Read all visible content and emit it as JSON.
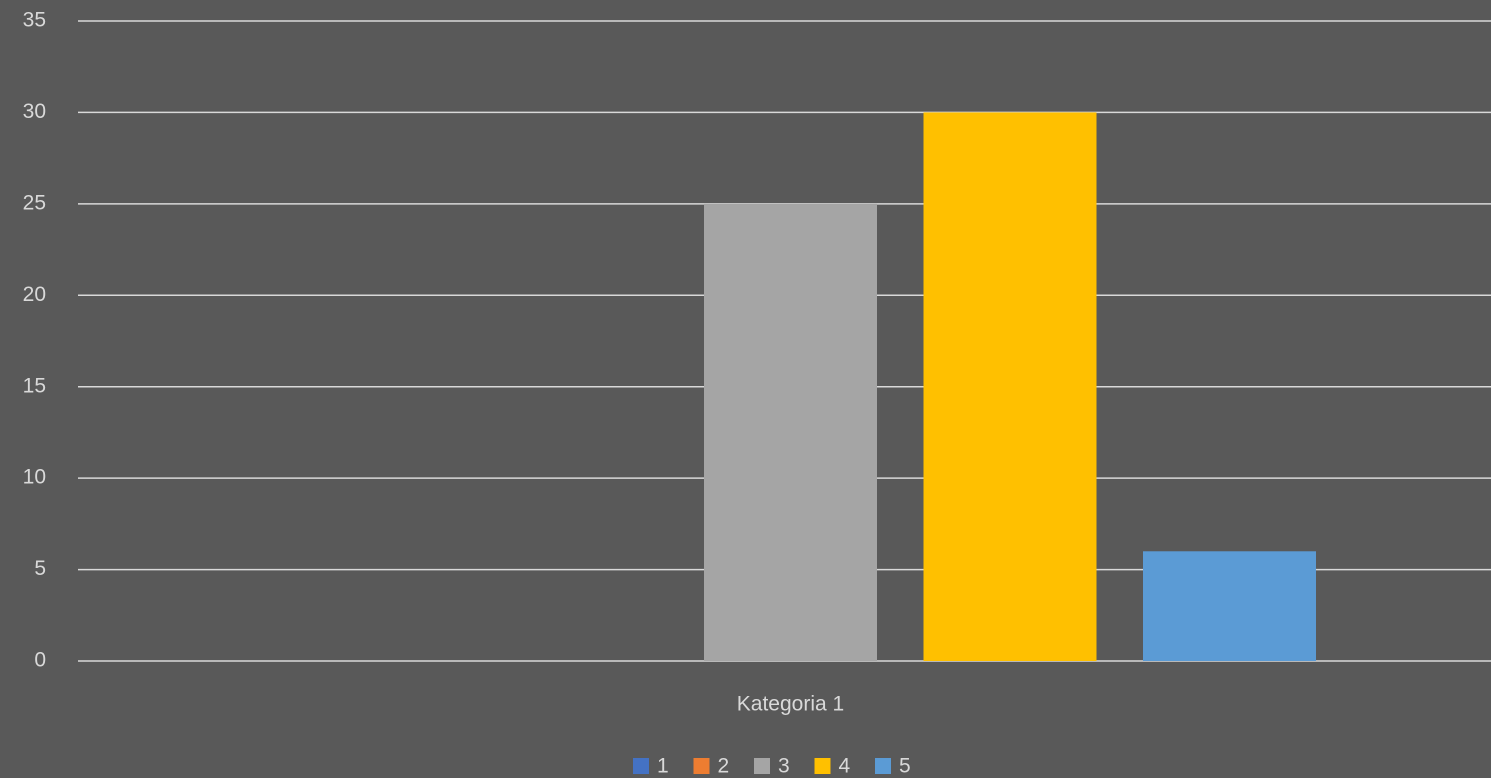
{
  "chart_data": {
    "type": "bar",
    "categories": [
      "Kategoria 1"
    ],
    "series": [
      {
        "name": "1",
        "color": "#4472c4",
        "values": [
          0
        ]
      },
      {
        "name": "2",
        "color": "#ed7d31",
        "values": [
          0
        ]
      },
      {
        "name": "3",
        "color": "#a5a5a5",
        "values": [
          25
        ]
      },
      {
        "name": "4",
        "color": "#ffc000",
        "values": [
          30
        ]
      },
      {
        "name": "5",
        "color": "#5b9bd5",
        "values": [
          6
        ]
      }
    ],
    "ylim": [
      0,
      35
    ],
    "yticks": [
      0,
      5,
      10,
      15,
      20,
      25,
      30,
      35
    ],
    "grid": true,
    "legend": "bottom"
  }
}
